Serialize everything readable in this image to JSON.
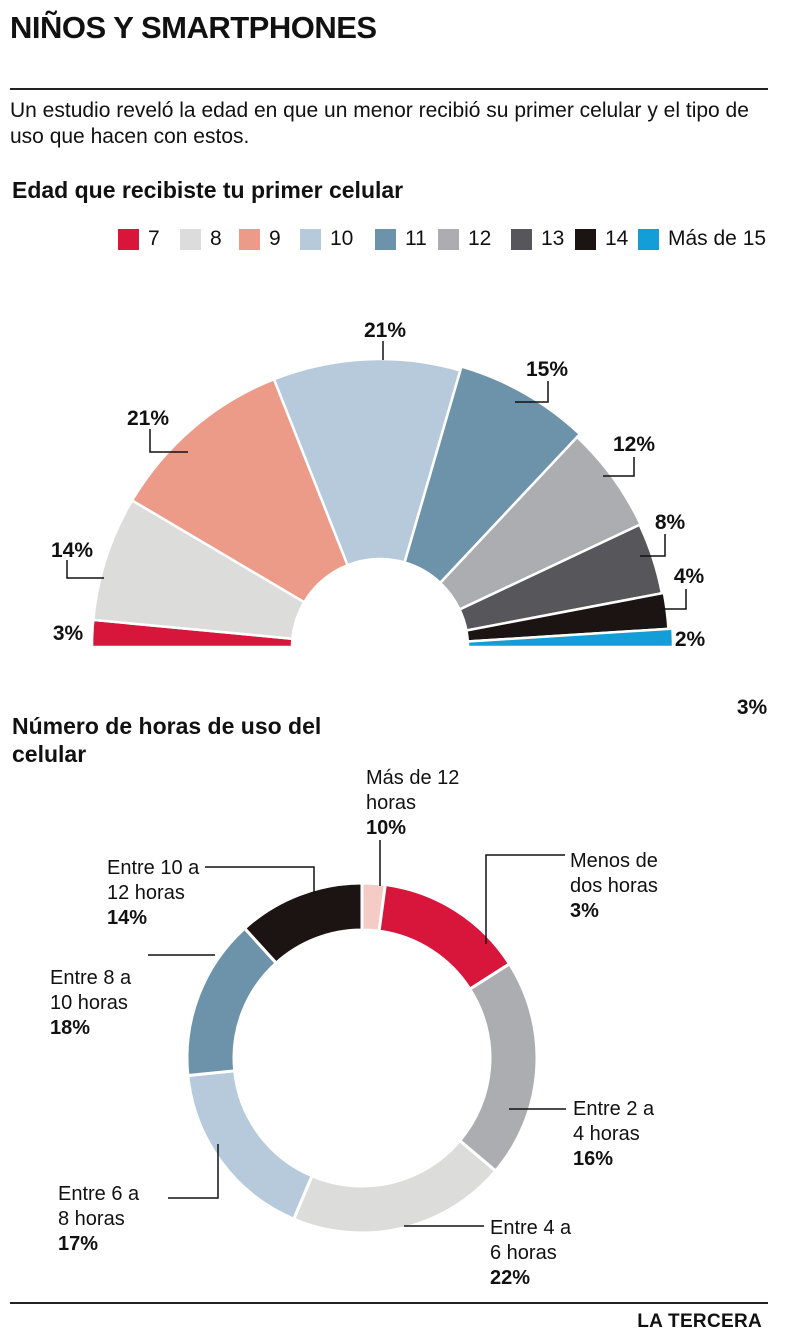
{
  "header": {
    "title": "NIÑOS Y SMARTPHONES",
    "intro": "Un estudio reveló la edad en que un menor recibió su primer celular y el tipo de uso que hacen con estos."
  },
  "footer": {
    "brand": "LA TERCERA"
  },
  "chart_data": [
    {
      "type": "pie",
      "variant": "semicircle-donut",
      "title": "Edad que recibiste tu primer celular",
      "legend_position": "top",
      "categories": [
        "7",
        "8",
        "9",
        "10",
        "11",
        "12",
        "13",
        "14",
        "Más de 15"
      ],
      "values": [
        3,
        14,
        21,
        21,
        15,
        12,
        8,
        4,
        2
      ],
      "value_labels": [
        "3%",
        "14%",
        "21%",
        "21%",
        "15%",
        "12%",
        "8%",
        "4%",
        "2%"
      ],
      "colors": [
        "#d8153a",
        "#dcdcdb",
        "#ec9b89",
        "#b7cadb",
        "#6d93ab",
        "#acadb0",
        "#57575b",
        "#1c1412",
        "#149ed7"
      ],
      "annotations": [
        "3%"
      ]
    },
    {
      "type": "pie",
      "variant": "donut",
      "title": "Número de horas de uso del celular",
      "categories": [
        "Más de 12 horas",
        "Menos de dos horas",
        "Entre 2 a 4 horas",
        "Entre 4 a 6 horas",
        "Entre 6 a 8 horas",
        "Entre 8 a 10 horas",
        "Entre 10 a 12 horas"
      ],
      "values": [
        10,
        3,
        16,
        22,
        17,
        18,
        14
      ],
      "value_labels": [
        "10%",
        "3%",
        "16%",
        "22%",
        "17%",
        "18%",
        "14%"
      ],
      "label_lines": [
        [
          "Más de 12",
          "horas"
        ],
        [
          "Menos de",
          "dos horas"
        ],
        [
          "Entre 2 a",
          "4 horas"
        ],
        [
          "Entre 4 a",
          "6 horas"
        ],
        [
          "Entre 6 a",
          "8 horas"
        ],
        [
          "Entre 8 a",
          "10 horas"
        ],
        [
          "Entre 10 a",
          "12 horas"
        ]
      ],
      "colors": [
        "#f4cbc5",
        "#d8153a",
        "#acadb0",
        "#dcdcdb",
        "#b7cadb",
        "#6d93ab",
        "#1c1412"
      ]
    }
  ]
}
